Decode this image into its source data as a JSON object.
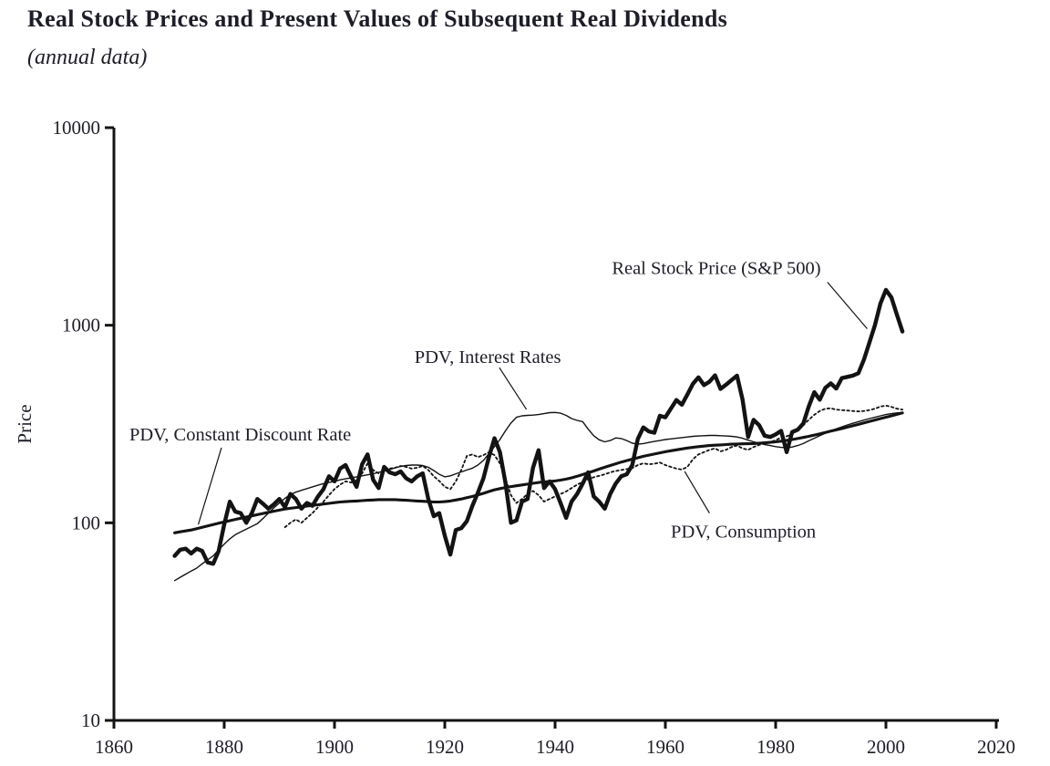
{
  "colors": {
    "ink": "#131313",
    "text": "#1e1e28",
    "background": "#ffffff"
  },
  "chart_data": {
    "type": "line",
    "title": "Real Stock Prices and Present Values of Subsequent Real Dividends",
    "subtitle": "(annual data)",
    "xlabel": "",
    "ylabel": "Price",
    "y_scale": "log",
    "xlim": [
      1860,
      2020
    ],
    "ylim": [
      10,
      10000
    ],
    "x_ticks": [
      1860,
      1880,
      1900,
      1920,
      1940,
      1960,
      1980,
      2000,
      2020
    ],
    "y_ticks": [
      10,
      100,
      1000,
      10000
    ],
    "grid": false,
    "legend_position": "inline-annotations",
    "series": [
      {
        "name": "Real Stock Price (S&P 500)",
        "line_style": "solid-thick",
        "x_start": 1871,
        "values": [
          68,
          73,
          74,
          70,
          74,
          72,
          63,
          62,
          72,
          98,
          128,
          114,
          112,
          100,
          112,
          132,
          125,
          118,
          124,
          132,
          120,
          140,
          132,
          118,
          126,
          122,
          136,
          148,
          172,
          162,
          188,
          196,
          172,
          152,
          198,
          222,
          165,
          150,
          192,
          180,
          176,
          182,
          168,
          162,
          172,
          178,
          132,
          108,
          112,
          86,
          69,
          92,
          94,
          102,
          122,
          142,
          168,
          215,
          268,
          228,
          160,
          100,
          103,
          128,
          132,
          190,
          233,
          150,
          162,
          148,
          126,
          106,
          128,
          140,
          158,
          180,
          136,
          128,
          118,
          140,
          158,
          172,
          176,
          196,
          266,
          304,
          290,
          286,
          348,
          342,
          378,
          418,
          396,
          446,
          506,
          545,
          498,
          518,
          558,
          476,
          500,
          528,
          556,
          420,
          272,
          332,
          312,
          276,
          272,
          280,
          292,
          228,
          288,
          296,
          318,
          388,
          458,
          420,
          482,
          508,
          478,
          540,
          548,
          556,
          572,
          668,
          818,
          1000,
          1290,
          1510,
          1382,
          1128,
          930
        ]
      },
      {
        "name": "PDV, Constant Discount Rate",
        "line_style": "solid-medium",
        "x_start": 1871,
        "values": [
          89,
          90,
          91,
          92,
          93.5,
          95,
          96.5,
          98,
          99.5,
          101,
          102.5,
          104,
          105.5,
          107,
          108.5,
          110,
          111.5,
          113,
          114.5,
          116,
          117.5,
          118.5,
          119.5,
          120.5,
          121.5,
          122.5,
          123.5,
          124.5,
          125.5,
          126.5,
          127.5,
          128,
          128.5,
          129,
          129.5,
          130,
          130.5,
          131,
          131,
          131,
          131,
          130.5,
          130,
          129.5,
          129,
          128.5,
          128,
          127.5,
          127.5,
          128,
          129,
          130.5,
          132,
          134,
          136,
          138.5,
          141,
          144,
          147,
          149,
          151,
          152.5,
          154,
          155.5,
          157,
          158.5,
          160,
          161,
          162,
          163,
          164.5,
          166.5,
          169,
          172,
          175.5,
          179,
          183,
          187,
          191,
          195,
          199,
          203,
          206.5,
          210,
          213.5,
          217,
          220,
          223,
          226,
          229,
          231.5,
          234,
          236.5,
          239,
          241,
          243,
          244.5,
          246,
          247,
          248,
          249,
          250,
          250.5,
          251,
          251.5,
          252,
          253,
          254,
          255.5,
          257,
          259,
          261.5,
          264,
          267,
          270.5,
          274,
          278,
          282,
          286.5,
          291,
          295.5,
          300,
          305,
          310,
          315,
          320.5,
          326,
          331.5,
          337,
          342.5,
          348,
          354,
          360
        ]
      },
      {
        "name": "PDV, Interest Rates",
        "line_style": "solid-thin",
        "x_start": 1871,
        "values": [
          51,
          53,
          55,
          57,
          59,
          62,
          65,
          68,
          73,
          78,
          83,
          87,
          90,
          93,
          96,
          99,
          105,
          112,
          119,
          126,
          133,
          139,
          143,
          146,
          149,
          152,
          155,
          158,
          160,
          162,
          165,
          167,
          169,
          171,
          173,
          175,
          177,
          180,
          183,
          186,
          190,
          193,
          195,
          196,
          196,
          195,
          191,
          184,
          176,
          171,
          173,
          177,
          181,
          185,
          189,
          196,
          207,
          224,
          243,
          264,
          292,
          320,
          342,
          348,
          350,
          351,
          353,
          357,
          361,
          362,
          359,
          350,
          337,
          330,
          325,
          298,
          276,
          263,
          257,
          261,
          269,
          267,
          261,
          253,
          250,
          252,
          255,
          258,
          261,
          264,
          266,
          268,
          270,
          272,
          274,
          275,
          276,
          277,
          277,
          276,
          275,
          274,
          272,
          268,
          262,
          257,
          253,
          249,
          246,
          243,
          241,
          240,
          242,
          246,
          252,
          260,
          268,
          276,
          284,
          292,
          299,
          306,
          313,
          319,
          325,
          331,
          337,
          342,
          348,
          353,
          357,
          360,
          362
        ]
      },
      {
        "name": "PDV, Consumption",
        "line_style": "dotted",
        "x_start": 1891,
        "values": [
          95,
          100,
          104,
          100,
          106,
          112,
          120,
          128,
          138,
          148,
          156,
          162,
          160,
          164,
          178,
          200,
          185,
          178,
          185,
          188,
          190,
          194,
          192,
          188,
          190,
          194,
          185,
          172,
          163,
          152,
          148,
          162,
          185,
          218,
          222,
          215,
          220,
          228,
          220,
          200,
          168,
          138,
          126,
          132,
          140,
          145,
          138,
          128,
          132,
          136,
          140,
          144,
          150,
          156,
          161,
          166,
          170,
          173,
          176,
          180,
          183,
          185,
          187,
          189,
          196,
          200,
          198,
          199,
          202,
          196,
          192,
          188,
          186,
          192,
          210,
          222,
          228,
          234,
          238,
          230,
          234,
          242,
          246,
          238,
          234,
          242,
          248,
          252,
          256,
          262,
          270,
          274,
          282,
          294,
          312,
          332,
          352,
          368,
          378,
          380,
          374,
          372,
          370,
          368,
          366,
          368,
          372,
          378,
          388,
          392,
          386,
          378,
          374
        ]
      }
    ],
    "annotations": [
      {
        "id": "real-stock-price",
        "text": "Real Stock Price (S&P 500)",
        "label_year": 1950.3,
        "label_value": 1820,
        "leader": [
          [
            1989.4,
            1650
          ],
          [
            1996.6,
            960
          ]
        ]
      },
      {
        "id": "pdv-interest-rates",
        "text": "PDV, Interest Rates",
        "label_year": 1914.5,
        "label_value": 645,
        "leader": [
          [
            1929.9,
            610
          ],
          [
            1934.8,
            375
          ]
        ]
      },
      {
        "id": "pdv-constant-discount-rate",
        "text": "PDV, Constant Discount Rate",
        "label_year": 1862.8,
        "label_value": 261,
        "leader": [
          [
            1879.5,
            240
          ],
          [
            1875.3,
            98
          ]
        ]
      },
      {
        "id": "pdv-consumption",
        "text": "PDV, Consumption",
        "label_year": 1961.0,
        "label_value": 84,
        "leader": [
          [
            1968.0,
            112
          ],
          [
            1963.5,
            182
          ]
        ]
      }
    ]
  }
}
